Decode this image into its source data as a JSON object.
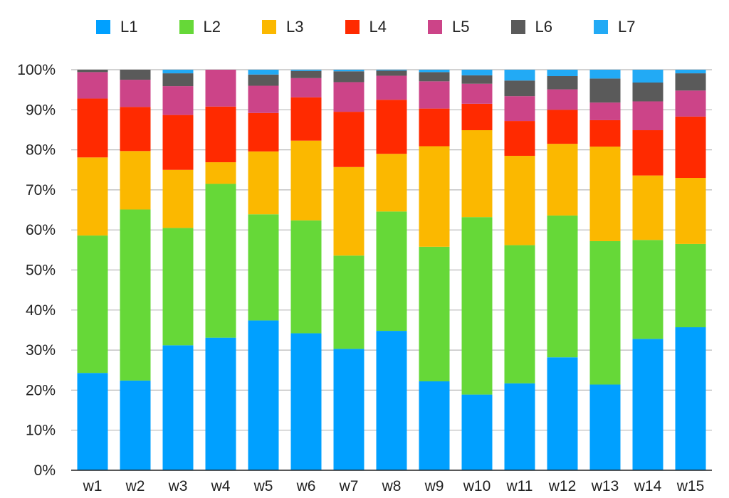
{
  "chart_data": {
    "type": "bar",
    "stacked": true,
    "title": "",
    "xlabel": "",
    "ylabel": "",
    "ylim": [
      0,
      100
    ],
    "y_ticks": [
      "0%",
      "10%",
      "20%",
      "30%",
      "40%",
      "50%",
      "60%",
      "70%",
      "80%",
      "90%",
      "100%"
    ],
    "categories": [
      "w1",
      "w2",
      "w3",
      "w4",
      "w5",
      "w6",
      "w7",
      "w8",
      "w9",
      "w10",
      "w11",
      "w12",
      "w13",
      "w14",
      "w15"
    ],
    "series": [
      {
        "name": "L1",
        "color": "#00A0FF",
        "values": [
          24.3,
          22.4,
          31.2,
          33.1,
          37.4,
          34.2,
          30.3,
          34.8,
          22.2,
          18.9,
          21.7,
          28.2,
          21.4,
          32.8,
          35.7
        ]
      },
      {
        "name": "L2",
        "color": "#66D838",
        "values": [
          34.3,
          42.7,
          29.3,
          38.4,
          26.5,
          28.2,
          23.3,
          29.8,
          33.6,
          44.3,
          34.5,
          35.4,
          35.8,
          24.7,
          20.8
        ]
      },
      {
        "name": "L3",
        "color": "#FBB800",
        "values": [
          19.5,
          14.6,
          14.5,
          5.4,
          15.7,
          19.9,
          22.1,
          14.4,
          25.1,
          21.7,
          22.3,
          17.9,
          23.6,
          16.1,
          16.5
        ]
      },
      {
        "name": "L4",
        "color": "#FF2A00",
        "values": [
          14.7,
          11.0,
          13.7,
          13.9,
          9.6,
          10.8,
          13.8,
          13.5,
          9.4,
          6.6,
          8.7,
          8.5,
          6.6,
          11.3,
          15.3
        ]
      },
      {
        "name": "L5",
        "color": "#CC4488",
        "values": [
          6.6,
          6.8,
          7.2,
          9.2,
          6.8,
          4.8,
          7.4,
          6.0,
          6.8,
          5.0,
          6.2,
          5.1,
          4.4,
          7.2,
          6.5
        ]
      },
      {
        "name": "L6",
        "color": "#5A5A5A",
        "values": [
          0.6,
          2.5,
          3.2,
          0.0,
          2.8,
          1.8,
          2.7,
          1.3,
          2.3,
          2.1,
          3.9,
          3.3,
          6.0,
          4.7,
          4.3
        ]
      },
      {
        "name": "L7",
        "color": "#22AAF5",
        "values": [
          0.0,
          0.0,
          0.9,
          0.0,
          1.2,
          0.3,
          0.4,
          0.2,
          0.6,
          1.4,
          2.7,
          1.6,
          2.2,
          3.2,
          0.9
        ]
      }
    ],
    "legend_position": "top",
    "grid": true
  }
}
